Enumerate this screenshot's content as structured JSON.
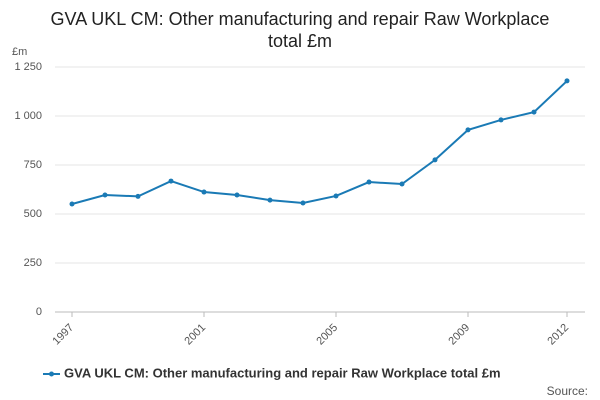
{
  "chart_data": {
    "type": "line",
    "title": "GVA UKL CM: Other manufacturing and repair Raw Workplace total £m",
    "y_label": "£m",
    "x": [
      1997,
      1998,
      1999,
      2000,
      2001,
      2002,
      2003,
      2004,
      2005,
      2006,
      2007,
      2008,
      2009,
      2010,
      2011,
      2012
    ],
    "series": [
      {
        "name": "GVA UKL CM: Other manufacturing and repair Raw Workplace total £m",
        "color": "#1a7ab5",
        "values": [
          551,
          597,
          590,
          668,
          612,
          597,
          571,
          556,
          592,
          663,
          653,
          776,
          929,
          980,
          1020,
          1179
        ]
      }
    ],
    "xlim": [
      1997,
      2012
    ],
    "xticks": [
      1997,
      2001,
      2005,
      2009,
      2012
    ],
    "ylim": [
      0,
      1250
    ],
    "yticks": [
      0,
      250,
      500,
      750,
      {
        "value": 1000,
        "label": "1 000"
      },
      {
        "value": 1250,
        "label": "1 250"
      }
    ],
    "grid": true,
    "source": "Source:"
  }
}
